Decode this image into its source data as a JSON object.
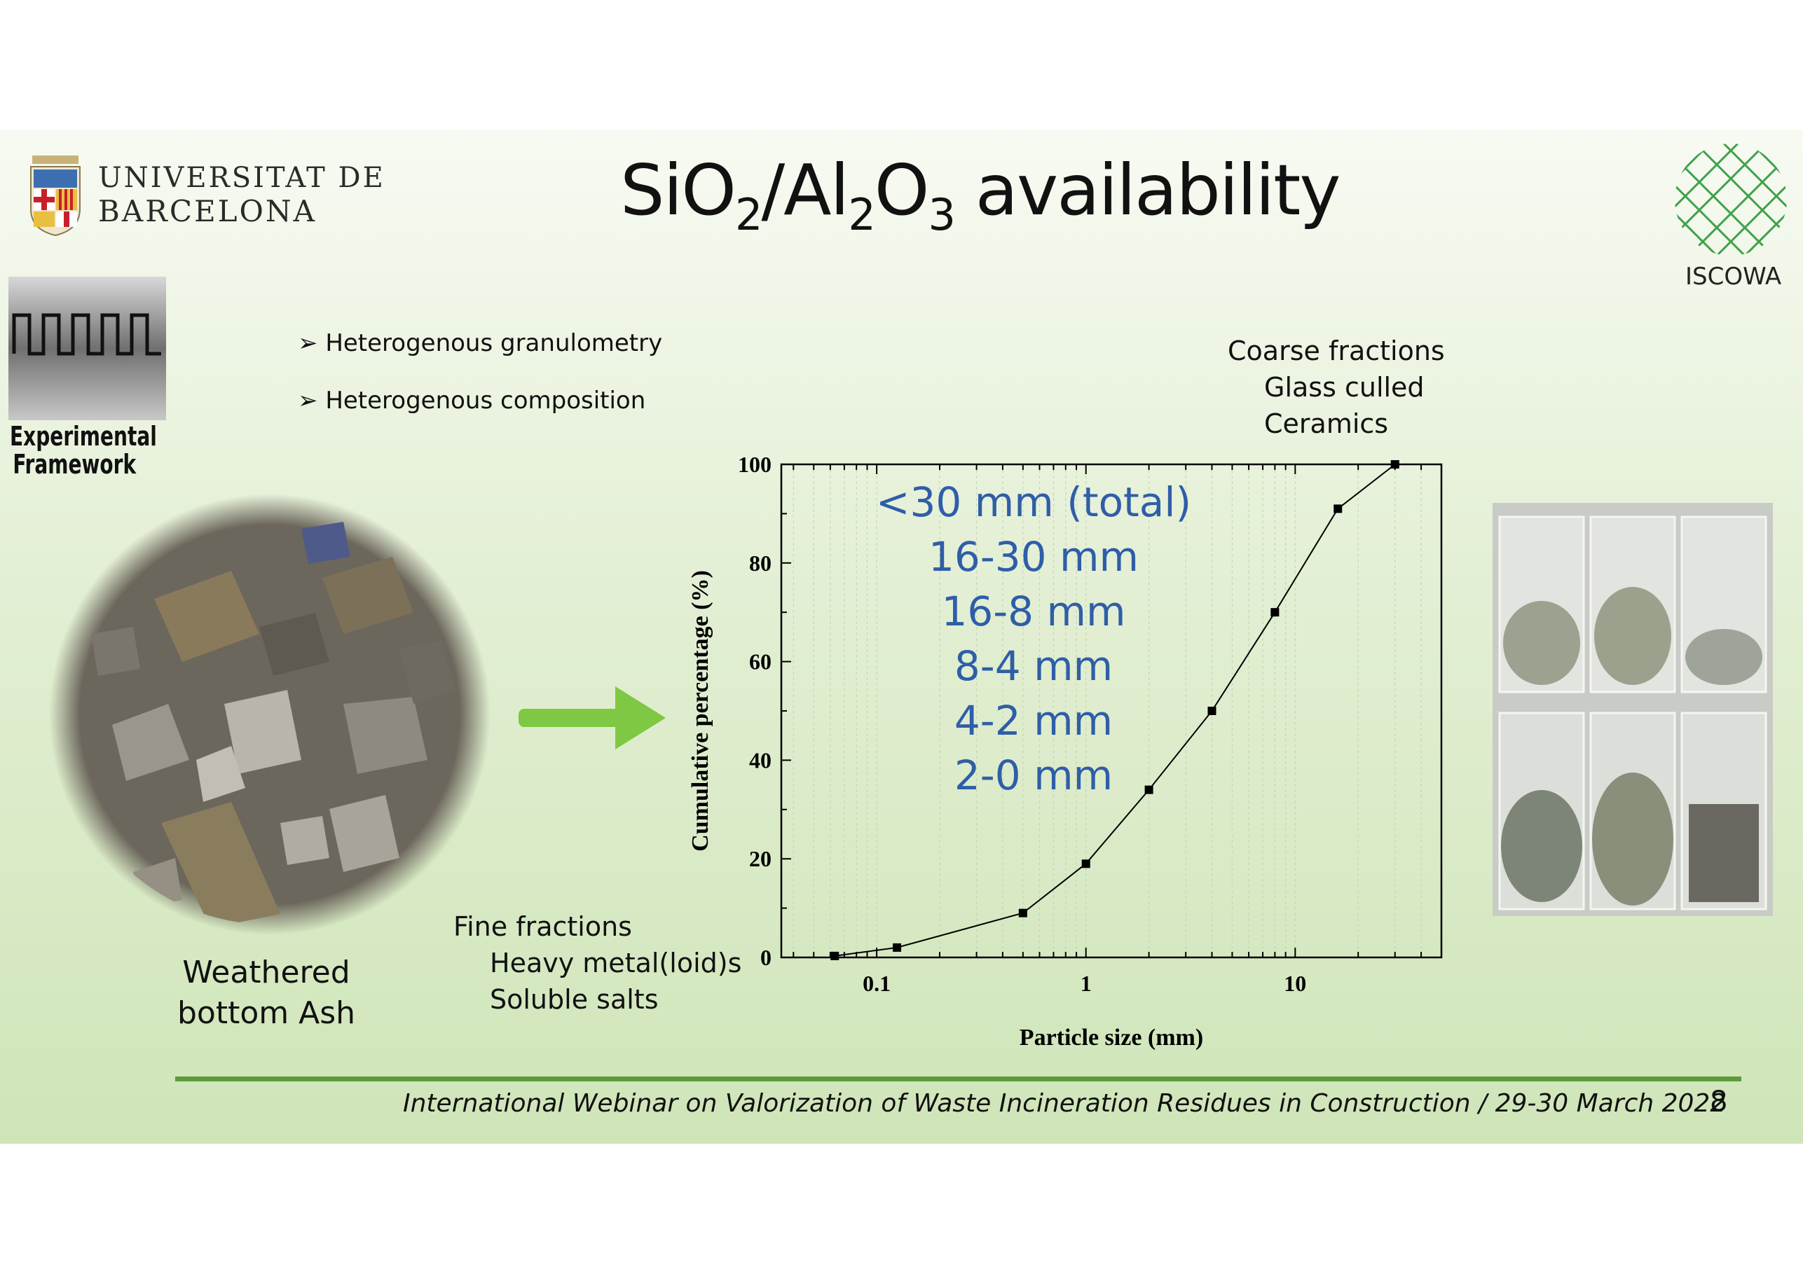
{
  "slide": {
    "title_main": "SiO",
    "title_sub1": "2",
    "title_mid": "/Al",
    "title_sub2": "2",
    "title_o": "O",
    "title_sub3": "3",
    "title_end": " availability",
    "university_line1": "UNIVERSITAT DE",
    "university_line2": "BARCELONA",
    "iscowa": "ISCOWA",
    "experimental_line1": "Experimental",
    "experimental_line2": "Framework",
    "bullets": [
      "Heterogenous granulometry",
      "Heterogenous composition"
    ],
    "bullet_marker": "➢",
    "coarse_title": "Coarse fractions",
    "coarse_items": [
      "Glass culled",
      "Ceramics"
    ],
    "fine_title": "Fine fractions",
    "fine_items": [
      "Heavy metal(loid)s",
      "Soluble salts"
    ],
    "ash_line1": "Weathered",
    "ash_line2": "bottom Ash",
    "footer": "International Webinar on Valorization of Waste Incineration Residues in Construction / 29-30 March 2022",
    "page_number": "8",
    "colors": {
      "accent_green": "#5e9a3c",
      "arrow_green": "#7ec843",
      "fraction_blue": "#2f5ea8"
    }
  },
  "chart_data": {
    "type": "line",
    "xscale": "log",
    "xlabel": "Particle size (mm)",
    "ylabel": "Cumulative percentage (%)",
    "xlim": [
      0.035,
      50
    ],
    "ylim": [
      0,
      100
    ],
    "x_ticks": [
      0.1,
      1,
      10
    ],
    "x_tick_labels": [
      "0.1",
      "1",
      "10"
    ],
    "y_ticks": [
      0,
      20,
      40,
      60,
      80,
      100
    ],
    "y_tick_labels": [
      "0",
      "20",
      "40",
      "60",
      "80",
      "100"
    ],
    "grid": true,
    "series": [
      {
        "x": [
          0.063,
          0.125,
          0.5,
          1,
          2,
          4,
          8,
          16,
          30
        ],
        "y": [
          0.3,
          2,
          9,
          19,
          34,
          50,
          70,
          91,
          100
        ]
      }
    ],
    "annotations": [
      "<30 mm (total)",
      "16-30 mm",
      "16-8 mm",
      "8-4 mm",
      "4-2 mm",
      "2-0 mm"
    ]
  }
}
